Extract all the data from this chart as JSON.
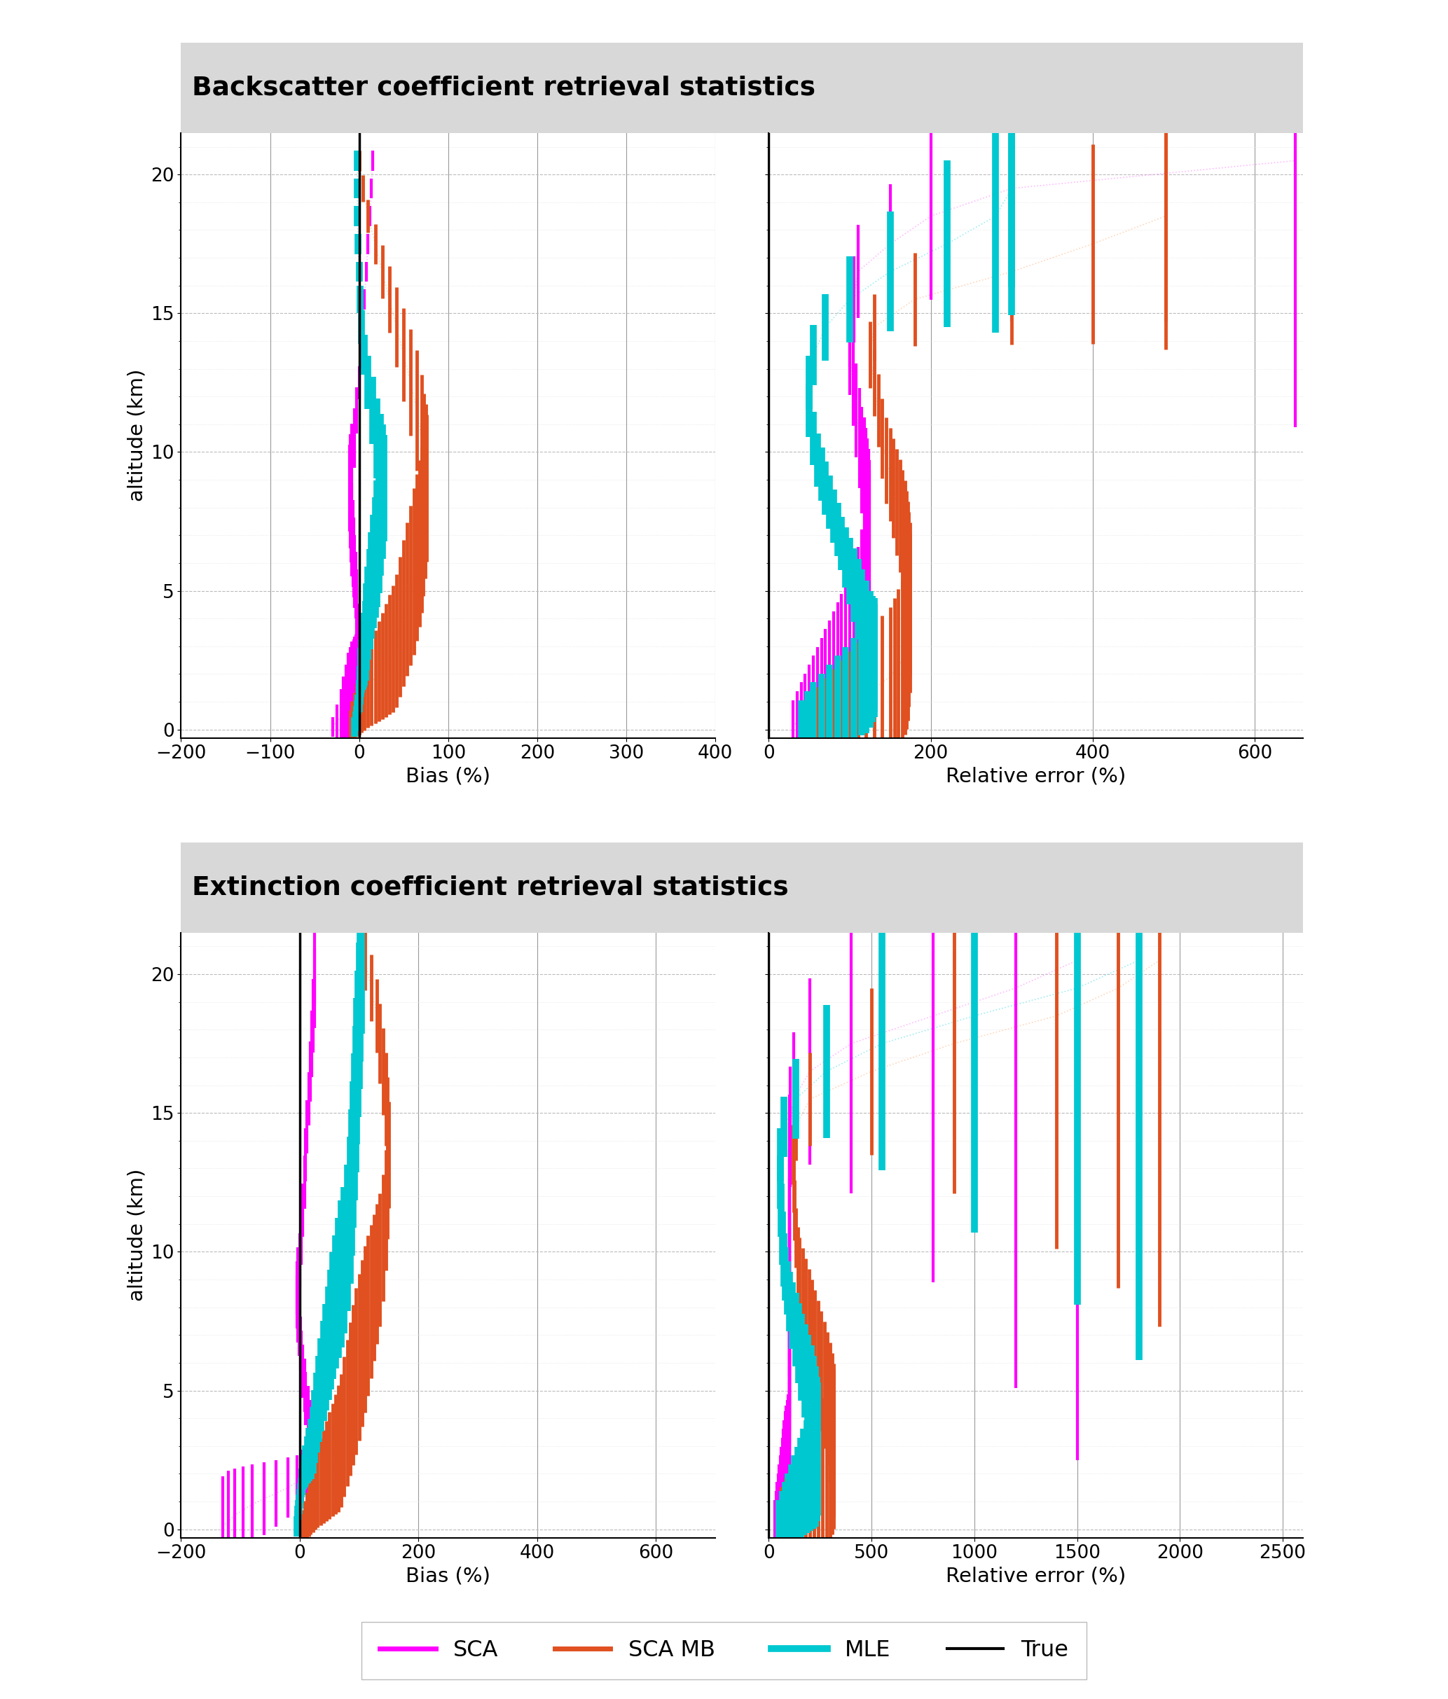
{
  "title_backscatter": "Backscatter coefficient retrieval statistics",
  "title_extinction": "Extinction coefficient retrieval statistics",
  "colors": {
    "SCA": "#ff00ff",
    "SCA_MB": "#e05020",
    "MLE": "#00c8d0",
    "True": "#000000",
    "SCA_dot": "#ffaaff",
    "SCA_MB_dot": "#ffccaa",
    "MLE_dot": "#88e8f0"
  },
  "altitudes": [
    0.1,
    0.3,
    0.5,
    0.7,
    0.9,
    1.1,
    1.3,
    1.5,
    1.7,
    1.9,
    2.1,
    2.3,
    2.5,
    2.7,
    2.9,
    3.2,
    3.7,
    4.2,
    4.7,
    5.2,
    5.7,
    6.2,
    6.7,
    7.2,
    7.7,
    8.2,
    8.7,
    9.2,
    9.7,
    10.5,
    11.5,
    12.5,
    13.5,
    14.5,
    15.5,
    16.5,
    17.5,
    18.5,
    19.5,
    20.5
  ],
  "bs_bias": {
    "SCA_x": [
      -30,
      -25,
      -20,
      -18,
      -15,
      -12,
      -10,
      -8,
      -6,
      -5,
      -4,
      -3,
      -3,
      -2,
      -2,
      -2,
      -2,
      -3,
      -3,
      -4,
      -5,
      -6,
      -7,
      -8,
      -9,
      -10,
      -11,
      -10,
      -8,
      -5,
      -3,
      0,
      2,
      4,
      6,
      8,
      10,
      12,
      14,
      15
    ],
    "SCA_lo": [
      3,
      5,
      8,
      10,
      12,
      14,
      14,
      14,
      13,
      12,
      11,
      10,
      9,
      8,
      7,
      7,
      7,
      8,
      9,
      10,
      11,
      12,
      13,
      14,
      14,
      14,
      13,
      12,
      11,
      9,
      7,
      5,
      4,
      3,
      3,
      3,
      3,
      3,
      3,
      3
    ],
    "SCA_hi": [
      3,
      5,
      8,
      10,
      12,
      14,
      14,
      14,
      13,
      12,
      11,
      10,
      9,
      8,
      7,
      7,
      7,
      8,
      9,
      10,
      11,
      12,
      13,
      14,
      14,
      14,
      13,
      12,
      11,
      9,
      7,
      5,
      4,
      3,
      3,
      3,
      3,
      3,
      3,
      3
    ],
    "SCA_MB_x": [
      -10,
      -8,
      -5,
      -3,
      0,
      3,
      6,
      10,
      14,
      18,
      22,
      26,
      30,
      34,
      38,
      42,
      46,
      50,
      54,
      58,
      62,
      65,
      68,
      70,
      72,
      74,
      76,
      75,
      73,
      70,
      65,
      58,
      50,
      42,
      34,
      26,
      18,
      10,
      4,
      0
    ],
    "SCA_MB_lo": [
      5,
      6,
      7,
      8,
      9,
      10,
      11,
      12,
      13,
      14,
      15,
      16,
      17,
      18,
      19,
      20,
      21,
      22,
      23,
      24,
      25,
      25,
      25,
      25,
      24,
      23,
      22,
      21,
      20,
      19,
      18,
      16,
      14,
      12,
      10,
      8,
      6,
      5,
      4,
      3
    ],
    "SCA_MB_hi": [
      5,
      6,
      7,
      8,
      9,
      10,
      11,
      12,
      13,
      14,
      15,
      16,
      17,
      18,
      19,
      20,
      21,
      22,
      23,
      24,
      25,
      25,
      25,
      25,
      24,
      23,
      22,
      21,
      20,
      19,
      18,
      16,
      14,
      12,
      10,
      8,
      6,
      5,
      4,
      3
    ],
    "MLE_x": [
      -5,
      -4,
      -3,
      -2,
      -1,
      0,
      0,
      1,
      1,
      2,
      2,
      3,
      4,
      5,
      6,
      7,
      8,
      10,
      12,
      14,
      16,
      18,
      20,
      22,
      24,
      26,
      28,
      26,
      24,
      20,
      15,
      10,
      6,
      3,
      1,
      0,
      -1,
      -2,
      -2,
      -2
    ],
    "MLE_lo": [
      3,
      3,
      3,
      3,
      3,
      4,
      4,
      5,
      5,
      6,
      7,
      8,
      9,
      10,
      11,
      12,
      13,
      14,
      15,
      16,
      17,
      18,
      19,
      19,
      18,
      17,
      16,
      15,
      14,
      12,
      10,
      8,
      6,
      5,
      4,
      3,
      3,
      3,
      3,
      3
    ],
    "MLE_hi": [
      3,
      3,
      3,
      3,
      3,
      4,
      4,
      5,
      5,
      6,
      7,
      8,
      9,
      10,
      11,
      12,
      13,
      14,
      15,
      16,
      17,
      18,
      19,
      19,
      18,
      17,
      16,
      15,
      14,
      12,
      10,
      8,
      6,
      5,
      4,
      3,
      3,
      3,
      3,
      3
    ]
  },
  "bs_relerr": {
    "SCA_x": [
      30,
      35,
      40,
      45,
      50,
      55,
      60,
      65,
      70,
      75,
      80,
      85,
      90,
      95,
      100,
      105,
      110,
      115,
      118,
      120,
      122,
      123,
      124,
      124,
      123,
      122,
      120,
      118,
      115,
      112,
      108,
      104,
      100,
      100,
      105,
      110,
      150,
      200,
      300,
      650
    ],
    "SCA_lo": [
      8,
      9,
      10,
      11,
      12,
      13,
      14,
      15,
      16,
      17,
      18,
      19,
      20,
      21,
      22,
      23,
      24,
      25,
      25,
      25,
      24,
      23,
      22,
      21,
      20,
      19,
      18,
      17,
      16,
      15,
      14,
      13,
      12,
      12,
      13,
      14,
      18,
      25,
      40,
      80
    ],
    "SCA_hi": [
      8,
      9,
      10,
      11,
      12,
      13,
      14,
      15,
      16,
      17,
      18,
      19,
      20,
      21,
      22,
      23,
      24,
      25,
      25,
      25,
      24,
      23,
      22,
      21,
      20,
      19,
      18,
      17,
      16,
      15,
      14,
      13,
      12,
      12,
      13,
      14,
      18,
      25,
      40,
      80
    ],
    "SCA_MB_x": [
      60,
      70,
      80,
      90,
      100,
      110,
      120,
      130,
      140,
      150,
      155,
      160,
      165,
      168,
      170,
      172,
      173,
      174,
      174,
      173,
      172,
      170,
      168,
      165,
      162,
      158,
      154,
      150,
      145,
      140,
      135,
      130,
      125,
      130,
      180,
      300,
      400,
      490,
      490,
      490
    ],
    "SCA_MB_lo": [
      12,
      13,
      14,
      15,
      16,
      17,
      18,
      19,
      20,
      21,
      22,
      23,
      24,
      24,
      24,
      24,
      24,
      24,
      23,
      22,
      21,
      20,
      19,
      18,
      17,
      16,
      15,
      14,
      13,
      12,
      11,
      10,
      10,
      10,
      14,
      22,
      30,
      40,
      40,
      40
    ],
    "SCA_MB_hi": [
      12,
      13,
      14,
      15,
      16,
      17,
      18,
      19,
      20,
      21,
      22,
      23,
      24,
      24,
      24,
      24,
      24,
      24,
      23,
      22,
      21,
      20,
      19,
      18,
      17,
      16,
      15,
      14,
      13,
      12,
      11,
      10,
      10,
      10,
      14,
      22,
      30,
      40,
      40,
      40
    ],
    "MLE_x": [
      40,
      48,
      55,
      65,
      75,
      85,
      95,
      105,
      115,
      120,
      125,
      128,
      130,
      130,
      128,
      125,
      120,
      115,
      110,
      105,
      100,
      95,
      90,
      85,
      80,
      75,
      70,
      65,
      60,
      55,
      50,
      50,
      55,
      70,
      100,
      150,
      220,
      280,
      300,
      300
    ],
    "MLE_lo": [
      8,
      9,
      10,
      11,
      12,
      13,
      14,
      15,
      16,
      17,
      17,
      17,
      17,
      17,
      16,
      15,
      14,
      13,
      12,
      11,
      10,
      9,
      8,
      8,
      8,
      8,
      8,
      8,
      8,
      8,
      8,
      8,
      9,
      10,
      13,
      18,
      25,
      35,
      38,
      38
    ],
    "MLE_hi": [
      8,
      9,
      10,
      11,
      12,
      13,
      14,
      15,
      16,
      17,
      17,
      17,
      17,
      17,
      16,
      15,
      14,
      13,
      12,
      11,
      10,
      9,
      8,
      8,
      8,
      8,
      8,
      8,
      8,
      8,
      8,
      8,
      9,
      10,
      13,
      18,
      25,
      35,
      38,
      38
    ]
  },
  "ext_bias": {
    "SCA_x": [
      -130,
      -120,
      -110,
      -95,
      -80,
      -60,
      -40,
      -20,
      -5,
      5,
      12,
      18,
      22,
      25,
      25,
      22,
      18,
      14,
      10,
      8,
      5,
      3,
      1,
      -1,
      -3,
      -5,
      -5,
      -3,
      0,
      3,
      5,
      8,
      10,
      12,
      15,
      18,
      20,
      22,
      25,
      25
    ],
    "SCA_lo": [
      15,
      15,
      14,
      13,
      12,
      11,
      10,
      9,
      8,
      8,
      8,
      8,
      8,
      8,
      8,
      8,
      8,
      8,
      8,
      8,
      8,
      8,
      8,
      8,
      8,
      8,
      8,
      8,
      8,
      8,
      8,
      8,
      8,
      8,
      8,
      9,
      10,
      11,
      12,
      13
    ],
    "SCA_hi": [
      15,
      15,
      14,
      13,
      12,
      11,
      10,
      9,
      8,
      8,
      8,
      8,
      8,
      8,
      8,
      8,
      8,
      8,
      8,
      8,
      8,
      8,
      8,
      8,
      8,
      8,
      8,
      8,
      8,
      8,
      8,
      8,
      8,
      8,
      8,
      9,
      10,
      11,
      12,
      13
    ],
    "SCA_MB_x": [
      5,
      8,
      12,
      15,
      18,
      22,
      26,
      30,
      35,
      40,
      45,
      50,
      55,
      60,
      65,
      70,
      75,
      80,
      85,
      90,
      95,
      100,
      105,
      110,
      115,
      120,
      125,
      130,
      135,
      140,
      145,
      148,
      150,
      148,
      145,
      140,
      135,
      130,
      120,
      110
    ],
    "SCA_MB_lo": [
      5,
      6,
      7,
      8,
      9,
      10,
      11,
      12,
      13,
      14,
      15,
      16,
      17,
      18,
      19,
      20,
      21,
      22,
      23,
      24,
      25,
      25,
      25,
      25,
      24,
      23,
      22,
      21,
      20,
      19,
      18,
      17,
      16,
      15,
      14,
      13,
      12,
      11,
      10,
      9
    ],
    "SCA_MB_hi": [
      5,
      6,
      7,
      8,
      9,
      10,
      11,
      12,
      13,
      14,
      15,
      16,
      17,
      18,
      19,
      20,
      21,
      22,
      23,
      24,
      25,
      25,
      25,
      25,
      24,
      23,
      22,
      21,
      20,
      19,
      18,
      17,
      16,
      15,
      14,
      13,
      12,
      11,
      10,
      9
    ],
    "MLE_x": [
      -5,
      -4,
      -3,
      -2,
      -1,
      0,
      1,
      2,
      4,
      6,
      8,
      10,
      13,
      16,
      19,
      22,
      25,
      28,
      32,
      36,
      40,
      44,
      48,
      52,
      56,
      60,
      65,
      70,
      75,
      80,
      85,
      88,
      90,
      92,
      94,
      96,
      98,
      100,
      102,
      104
    ],
    "MLE_lo": [
      3,
      3,
      3,
      3,
      3,
      3,
      3,
      3,
      4,
      4,
      5,
      6,
      7,
      8,
      9,
      10,
      11,
      12,
      13,
      14,
      15,
      16,
      17,
      18,
      19,
      20,
      21,
      22,
      22,
      22,
      22,
      22,
      22,
      22,
      22,
      22,
      22,
      22,
      22,
      22
    ],
    "MLE_hi": [
      3,
      3,
      3,
      3,
      3,
      3,
      3,
      3,
      4,
      4,
      5,
      6,
      7,
      8,
      9,
      10,
      11,
      12,
      13,
      14,
      15,
      16,
      17,
      18,
      19,
      20,
      21,
      22,
      22,
      22,
      22,
      22,
      22,
      22,
      22,
      22,
      22,
      22,
      22,
      22
    ]
  },
  "ext_relerr": {
    "SCA_x": [
      30,
      35,
      40,
      45,
      50,
      55,
      60,
      65,
      70,
      75,
      80,
      85,
      90,
      95,
      100,
      100,
      100,
      100,
      100,
      100,
      100,
      100,
      100,
      100,
      100,
      100,
      100,
      100,
      100,
      100,
      100,
      100,
      100,
      105,
      120,
      200,
      400,
      800,
      1200,
      1500
    ],
    "SCA_lo": [
      8,
      9,
      10,
      11,
      12,
      13,
      14,
      15,
      16,
      17,
      18,
      18,
      18,
      18,
      18,
      18,
      18,
      18,
      18,
      18,
      18,
      18,
      18,
      18,
      18,
      18,
      18,
      18,
      18,
      18,
      18,
      18,
      18,
      18,
      20,
      28,
      45,
      80,
      120,
      150
    ],
    "SCA_hi": [
      8,
      9,
      10,
      11,
      12,
      13,
      14,
      15,
      16,
      17,
      18,
      18,
      18,
      18,
      18,
      18,
      18,
      18,
      18,
      18,
      18,
      18,
      18,
      18,
      18,
      18,
      18,
      18,
      18,
      18,
      18,
      18,
      18,
      18,
      20,
      28,
      45,
      80,
      120,
      150
    ],
    "SCA_MB_x": [
      60,
      80,
      100,
      120,
      140,
      160,
      180,
      200,
      220,
      240,
      260,
      280,
      300,
      310,
      315,
      315,
      310,
      300,
      285,
      270,
      255,
      240,
      225,
      210,
      195,
      180,
      165,
      150,
      140,
      130,
      125,
      120,
      118,
      130,
      200,
      500,
      900,
      1400,
      1700,
      1900
    ],
    "SCA_MB_lo": [
      12,
      13,
      14,
      15,
      16,
      17,
      18,
      19,
      20,
      21,
      22,
      23,
      24,
      24,
      24,
      23,
      22,
      21,
      20,
      19,
      18,
      17,
      16,
      15,
      14,
      13,
      12,
      11,
      10,
      9,
      9,
      9,
      9,
      10,
      14,
      25,
      45,
      70,
      90,
      110
    ],
    "SCA_MB_hi": [
      12,
      13,
      14,
      15,
      16,
      17,
      18,
      19,
      20,
      21,
      22,
      23,
      24,
      24,
      24,
      23,
      22,
      21,
      20,
      19,
      18,
      17,
      16,
      15,
      14,
      13,
      12,
      11,
      10,
      9,
      9,
      9,
      9,
      10,
      14,
      25,
      45,
      70,
      90,
      110
    ],
    "MLE_x": [
      50,
      65,
      80,
      95,
      110,
      125,
      140,
      155,
      170,
      185,
      200,
      215,
      228,
      235,
      238,
      235,
      228,
      218,
      205,
      190,
      175,
      160,
      145,
      130,
      115,
      100,
      90,
      80,
      72,
      65,
      60,
      58,
      58,
      75,
      130,
      280,
      550,
      1000,
      1500,
      1800
    ],
    "MLE_lo": [
      8,
      9,
      10,
      11,
      12,
      13,
      14,
      15,
      16,
      17,
      18,
      19,
      20,
      20,
      20,
      19,
      18,
      17,
      16,
      15,
      14,
      13,
      12,
      11,
      10,
      9,
      8,
      8,
      8,
      8,
      8,
      8,
      8,
      9,
      12,
      20,
      38,
      65,
      95,
      120
    ],
    "MLE_hi": [
      8,
      9,
      10,
      11,
      12,
      13,
      14,
      15,
      16,
      17,
      18,
      19,
      20,
      20,
      20,
      19,
      18,
      17,
      16,
      15,
      14,
      13,
      12,
      11,
      10,
      9,
      8,
      8,
      8,
      8,
      8,
      8,
      8,
      9,
      12,
      20,
      38,
      65,
      95,
      120
    ]
  },
  "bs_bias_xlim": [
    -200,
    400
  ],
  "bs_bias_xticks": [
    -200,
    -100,
    0,
    100,
    200,
    300,
    400
  ],
  "bs_re_xlim": [
    0,
    660
  ],
  "bs_re_xticks": [
    0,
    200,
    400,
    600
  ],
  "ext_bias_xlim": [
    -200,
    700
  ],
  "ext_bias_xticks": [
    -200,
    0,
    200,
    400,
    600
  ],
  "ext_re_xlim": [
    0,
    2600
  ],
  "ext_re_xticks": [
    0,
    500,
    1000,
    1500,
    2000,
    2500
  ],
  "ylim": [
    -0.3,
    21.5
  ],
  "yticks": [
    0,
    5,
    10,
    15,
    20
  ]
}
